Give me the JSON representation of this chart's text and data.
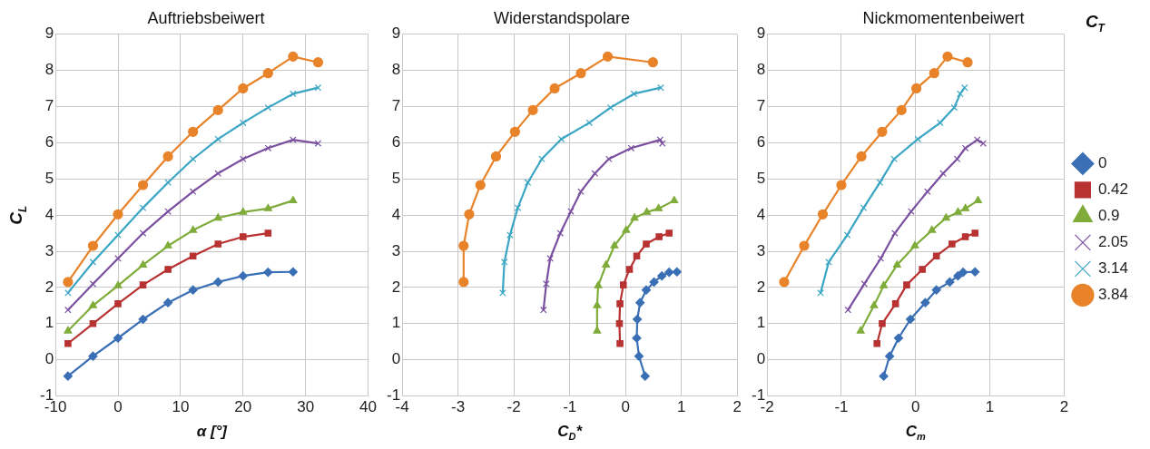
{
  "chart_data": [
    {
      "type": "line",
      "title": "Auftriebsbeiwert",
      "xlabel": "α [°]",
      "ylabel": "C$_{L}$",
      "xlim": [
        -10,
        40
      ],
      "xticks": [
        -10,
        0,
        10,
        20,
        30,
        40
      ],
      "ylim": [
        -1,
        9
      ],
      "yticks": [
        -1,
        0,
        1,
        2,
        3,
        4,
        5,
        6,
        7,
        8,
        9
      ],
      "grid": true,
      "series": [
        {
          "color": "#3a6fb5",
          "marker": "diamond",
          "x": [
            -8,
            -4,
            0,
            4,
            8,
            12,
            16,
            20,
            24,
            28
          ],
          "values": [
            -0.45,
            0.1,
            0.6,
            1.12,
            1.58,
            1.93,
            2.15,
            2.32,
            2.42,
            2.43
          ]
        },
        {
          "color": "#b83232",
          "marker": "square",
          "x": [
            -8,
            -4,
            0,
            4,
            8,
            12,
            16,
            20,
            24
          ],
          "values": [
            0.45,
            1.0,
            1.55,
            2.07,
            2.5,
            2.87,
            3.2,
            3.4,
            3.5
          ]
        },
        {
          "color": "#7fac3a",
          "marker": "triangle",
          "x": [
            -8,
            -4,
            0,
            4,
            8,
            12,
            16,
            20,
            24,
            28
          ],
          "values": [
            0.8,
            1.5,
            2.05,
            2.62,
            3.15,
            3.58,
            3.92,
            4.08,
            4.18,
            4.4
          ]
        },
        {
          "color": "#7a4fa0",
          "marker": "cross",
          "x": [
            -8,
            -4,
            0,
            4,
            8,
            12,
            16,
            20,
            24,
            28,
            32
          ],
          "values": [
            1.38,
            2.1,
            2.8,
            3.5,
            4.1,
            4.65,
            5.15,
            5.55,
            5.85,
            6.08,
            5.98
          ]
        },
        {
          "color": "#3aa6c4",
          "marker": "cross",
          "x": [
            -8,
            -4,
            0,
            4,
            8,
            12,
            16,
            20,
            24,
            28,
            32
          ],
          "values": [
            1.85,
            2.7,
            3.45,
            4.2,
            4.9,
            5.55,
            6.1,
            6.55,
            6.97,
            7.35,
            7.52
          ]
        },
        {
          "color": "#e8832a",
          "marker": "circle",
          "x": [
            -8,
            -4,
            0,
            4,
            8,
            12,
            16,
            20,
            24,
            28,
            32
          ],
          "values": [
            2.15,
            3.15,
            4.02,
            4.83,
            5.62,
            6.3,
            6.9,
            7.5,
            7.92,
            8.38,
            8.22
          ]
        }
      ]
    },
    {
      "type": "line",
      "title": "Widerstandspolare",
      "xlabel": "C$_{D}$*",
      "xlim": [
        -4,
        2
      ],
      "xticks": [
        -4,
        -3,
        -2,
        -1,
        0,
        1,
        2
      ],
      "ylim": [
        -1,
        9
      ],
      "yticks": [
        -1,
        0,
        1,
        2,
        3,
        4,
        5,
        6,
        7,
        8,
        9
      ],
      "grid": true,
      "series": [
        {
          "color": "#3a6fb5",
          "marker": "diamond",
          "x": [
            0.35,
            0.24,
            0.2,
            0.21,
            0.26,
            0.37,
            0.51,
            0.65,
            0.78,
            0.92
          ],
          "values": [
            -0.45,
            0.1,
            0.6,
            1.12,
            1.58,
            1.93,
            2.15,
            2.32,
            2.42,
            2.43
          ]
        },
        {
          "color": "#b83232",
          "marker": "square",
          "x": [
            -0.1,
            -0.11,
            -0.1,
            -0.04,
            0.07,
            0.2,
            0.37,
            0.6,
            0.78
          ],
          "values": [
            0.45,
            1.0,
            1.55,
            2.07,
            2.5,
            2.87,
            3.2,
            3.4,
            3.5
          ]
        },
        {
          "color": "#7fac3a",
          "marker": "triangle",
          "x": [
            -0.51,
            -0.51,
            -0.49,
            -0.35,
            -0.2,
            0.01,
            0.16,
            0.38,
            0.59,
            0.87
          ],
          "values": [
            0.8,
            1.5,
            2.05,
            2.62,
            3.15,
            3.58,
            3.92,
            4.08,
            4.18,
            4.4
          ]
        },
        {
          "color": "#7a4fa0",
          "marker": "cross",
          "x": [
            -1.47,
            -1.42,
            -1.35,
            -1.17,
            -0.98,
            -0.8,
            -0.55,
            -0.3,
            0.1,
            0.62,
            0.66
          ],
          "values": [
            1.38,
            2.1,
            2.8,
            3.5,
            4.1,
            4.65,
            5.15,
            5.55,
            5.85,
            6.08,
            5.98
          ]
        },
        {
          "color": "#3aa6c4",
          "marker": "cross",
          "x": [
            -2.2,
            -2.17,
            -2.07,
            -1.93,
            -1.75,
            -1.5,
            -1.15,
            -0.65,
            -0.27,
            0.15,
            0.63
          ],
          "values": [
            1.85,
            2.7,
            3.45,
            4.2,
            4.9,
            5.55,
            6.1,
            6.55,
            6.97,
            7.35,
            7.52
          ]
        },
        {
          "color": "#e8832a",
          "marker": "circle",
          "x": [
            -2.9,
            -2.9,
            -2.8,
            -2.6,
            -2.32,
            -1.98,
            -1.66,
            -1.27,
            -0.8,
            -0.32,
            0.49
          ],
          "values": [
            2.15,
            3.15,
            4.02,
            4.83,
            5.62,
            6.3,
            6.9,
            7.5,
            7.92,
            8.38,
            8.22
          ]
        }
      ]
    },
    {
      "type": "line",
      "title": "Nickmomentenbeiwert",
      "xlabel": "C$_{m}$",
      "xlim": [
        -2,
        2
      ],
      "xticks": [
        -2,
        -1,
        0,
        1,
        2
      ],
      "ylim": [
        -1,
        9
      ],
      "yticks": [
        -1,
        0,
        1,
        2,
        3,
        4,
        5,
        6,
        7,
        8,
        9
      ],
      "grid": true,
      "legend": "right",
      "legend_title": "C$_{T}$",
      "series": [
        {
          "name": "0",
          "color": "#3a6fb5",
          "marker": "diamond",
          "x": [
            -0.43,
            -0.35,
            -0.23,
            -0.07,
            0.13,
            0.28,
            0.46,
            0.57,
            0.64,
            0.8
          ],
          "values": [
            -0.45,
            0.1,
            0.6,
            1.12,
            1.58,
            1.93,
            2.15,
            2.32,
            2.42,
            2.43
          ]
        },
        {
          "name": "0.42",
          "color": "#b83232",
          "marker": "square",
          "x": [
            -0.52,
            -0.45,
            -0.27,
            -0.12,
            0.09,
            0.28,
            0.49,
            0.67,
            0.8
          ],
          "values": [
            0.45,
            1.0,
            1.55,
            2.07,
            2.5,
            2.87,
            3.2,
            3.4,
            3.5
          ]
        },
        {
          "name": "0.9",
          "color": "#7fac3a",
          "marker": "triangle",
          "x": [
            -0.74,
            -0.56,
            -0.43,
            -0.25,
            -0.01,
            0.22,
            0.41,
            0.57,
            0.67,
            0.84
          ],
          "values": [
            0.8,
            1.5,
            2.05,
            2.62,
            3.15,
            3.58,
            3.92,
            4.08,
            4.18,
            4.4
          ]
        },
        {
          "name": "2.05",
          "color": "#7a4fa0",
          "marker": "cross",
          "x": [
            -0.91,
            -0.69,
            -0.47,
            -0.28,
            -0.06,
            0.16,
            0.37,
            0.56,
            0.67,
            0.83,
            0.91
          ],
          "values": [
            1.38,
            2.1,
            2.8,
            3.5,
            4.1,
            4.65,
            5.15,
            5.55,
            5.85,
            6.08,
            5.98
          ]
        },
        {
          "name": "3.14",
          "color": "#3aa6c4",
          "marker": "cross",
          "x": [
            -1.28,
            -1.17,
            -0.92,
            -0.7,
            -0.48,
            -0.29,
            0.03,
            0.33,
            0.52,
            0.6,
            0.66
          ],
          "values": [
            1.85,
            2.7,
            3.45,
            4.2,
            4.9,
            5.55,
            6.1,
            6.55,
            6.97,
            7.35,
            7.52
          ]
        },
        {
          "name": "3.84",
          "color": "#e8832a",
          "marker": "circle",
          "x": [
            -1.77,
            -1.5,
            -1.25,
            -1.0,
            -0.73,
            -0.45,
            -0.19,
            0.01,
            0.25,
            0.43,
            0.7
          ],
          "values": [
            2.15,
            3.15,
            4.02,
            4.83,
            5.62,
            6.3,
            6.9,
            7.5,
            7.92,
            8.38,
            8.22
          ]
        }
      ]
    }
  ]
}
